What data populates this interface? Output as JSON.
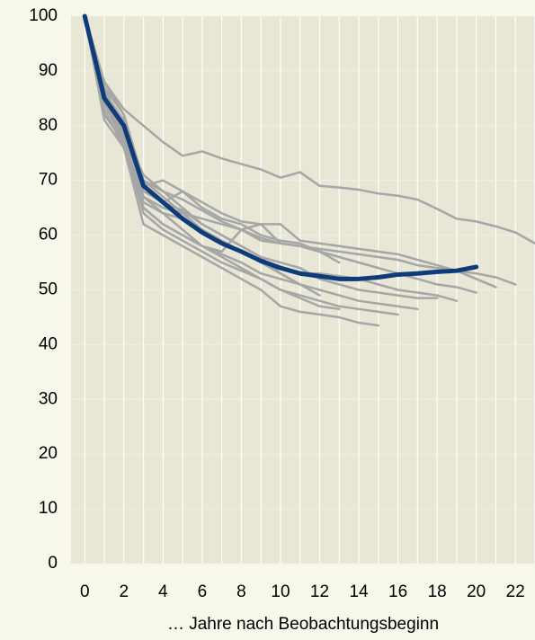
{
  "chart_data": {
    "type": "line",
    "x_label": "… Jahre nach Beobachtungsbeginn",
    "x": [
      0,
      1,
      2,
      3,
      4,
      5,
      6,
      7,
      8,
      9,
      10,
      11,
      12,
      13,
      14,
      15,
      16,
      17,
      18,
      19,
      20,
      21,
      22,
      23
    ],
    "xlim": [
      -0.7,
      23
    ],
    "xticks": [
      0,
      2,
      4,
      6,
      8,
      10,
      12,
      14,
      16,
      18,
      20,
      22
    ],
    "xminorticks": [
      1,
      3,
      5,
      7,
      9,
      11,
      13,
      15,
      17,
      19,
      21,
      23
    ],
    "ylim": [
      0,
      100
    ],
    "yticks": [
      0,
      10,
      20,
      30,
      40,
      50,
      60,
      70,
      80,
      90,
      100
    ],
    "grid": true,
    "series": [
      {
        "color": "#a6a6a6",
        "values": [
          100,
          88,
          83,
          80,
          77,
          74.5,
          75.3,
          74,
          73,
          72,
          70.5,
          71.5,
          69,
          68.7,
          68.3,
          67.6,
          67.2,
          66.5,
          64.8,
          63,
          62.5,
          61.6,
          60.5,
          58.5
        ]
      },
      {
        "color": "#a6a6a6",
        "values": [
          100,
          87,
          82,
          70,
          68,
          66.5,
          64.5,
          62.5,
          61,
          59.5,
          58.5,
          58,
          57.5,
          57,
          56.5,
          56,
          55.5,
          54.5,
          54,
          53.5,
          53,
          52.3,
          51,
          null
        ]
      },
      {
        "color": "#a6a6a6",
        "values": [
          100,
          86,
          81,
          69,
          70,
          68,
          66,
          64,
          62.5,
          62,
          62,
          59,
          58.5,
          58,
          57.5,
          57,
          56.5,
          55.5,
          54.5,
          53.5,
          52,
          50.5,
          null,
          null
        ]
      },
      {
        "color": "#a6a6a6",
        "values": [
          100,
          85,
          79,
          67,
          65,
          64,
          63,
          62,
          61,
          59,
          58.5,
          58,
          57,
          56,
          55,
          54,
          53,
          52,
          51,
          50.5,
          49.5,
          null,
          null,
          null
        ]
      },
      {
        "color": "#a6a6a6",
        "values": [
          100,
          84,
          78,
          66,
          64,
          63,
          61,
          59,
          57,
          55,
          54,
          53,
          53,
          52.5,
          52,
          51,
          50,
          49.5,
          49,
          48,
          null,
          null,
          null,
          null
        ]
      },
      {
        "color": "#a6a6a6",
        "values": [
          100,
          85,
          78,
          68,
          66,
          64.5,
          62,
          60,
          58,
          56,
          55,
          54,
          52,
          51,
          50,
          49.5,
          49,
          48.5,
          48.5,
          null,
          null,
          null,
          null,
          null
        ]
      },
      {
        "color": "#a6a6a6",
        "values": [
          100,
          83,
          76,
          65,
          62,
          60,
          58,
          56.5,
          55,
          53,
          52,
          51,
          50,
          49,
          48,
          47.5,
          47,
          46.5,
          null,
          null,
          null,
          null,
          null,
          null
        ]
      },
      {
        "color": "#a6a6a6",
        "values": [
          100,
          82,
          77,
          64,
          61,
          59,
          57,
          55,
          53.5,
          52,
          50,
          49,
          48,
          47,
          46.5,
          46,
          45.5,
          null,
          null,
          null,
          null,
          null,
          null,
          null
        ]
      },
      {
        "color": "#a6a6a6",
        "values": [
          100,
          81,
          76,
          62,
          60,
          58,
          56,
          54,
          52,
          50,
          47,
          46,
          45.5,
          45,
          44,
          43.5,
          null,
          null,
          null,
          null,
          null,
          null,
          null,
          null
        ]
      },
      {
        "color": "#a6a6a6",
        "values": [
          100,
          84,
          77,
          65,
          62,
          60,
          58,
          56,
          54,
          52,
          50,
          48.5,
          47,
          46.5,
          null,
          null,
          null,
          null,
          null,
          null,
          null,
          null,
          null,
          null
        ]
      },
      {
        "color": "#a6a6a6",
        "values": [
          100,
          86,
          80,
          70,
          67,
          64,
          61,
          59,
          57,
          55,
          53,
          51,
          49,
          null,
          null,
          null,
          null,
          null,
          null,
          null,
          null,
          null,
          null,
          null
        ]
      },
      {
        "color": "#a6a6a6",
        "values": [
          100,
          87,
          79,
          71,
          68,
          65,
          62,
          60,
          58,
          56,
          53,
          51,
          null,
          null,
          null,
          null,
          null,
          null,
          null,
          null,
          null,
          null,
          null,
          null
        ]
      },
      {
        "color": "#a6a6a6",
        "values": [
          100,
          88,
          82,
          69,
          66,
          68,
          65,
          63,
          62,
          60,
          59,
          58.5,
          57,
          56,
          55,
          54,
          null,
          null,
          null,
          null,
          null,
          null,
          null,
          null
        ]
      },
      {
        "color": "#a6a6a6",
        "values": [
          100,
          85,
          78,
          67,
          64,
          61,
          58,
          57,
          61,
          62,
          58.5,
          58,
          57,
          55,
          null,
          null,
          null,
          null,
          null,
          null,
          null,
          null,
          null,
          null
        ]
      },
      {
        "color": "#0e3c7a",
        "values": [
          100,
          85,
          80,
          69,
          66,
          63,
          60.5,
          58.5,
          57,
          55.3,
          54,
          53,
          52.5,
          52,
          52,
          52.3,
          52.8,
          53,
          53.3,
          53.5,
          54.2,
          null,
          null,
          null
        ]
      }
    ]
  }
}
